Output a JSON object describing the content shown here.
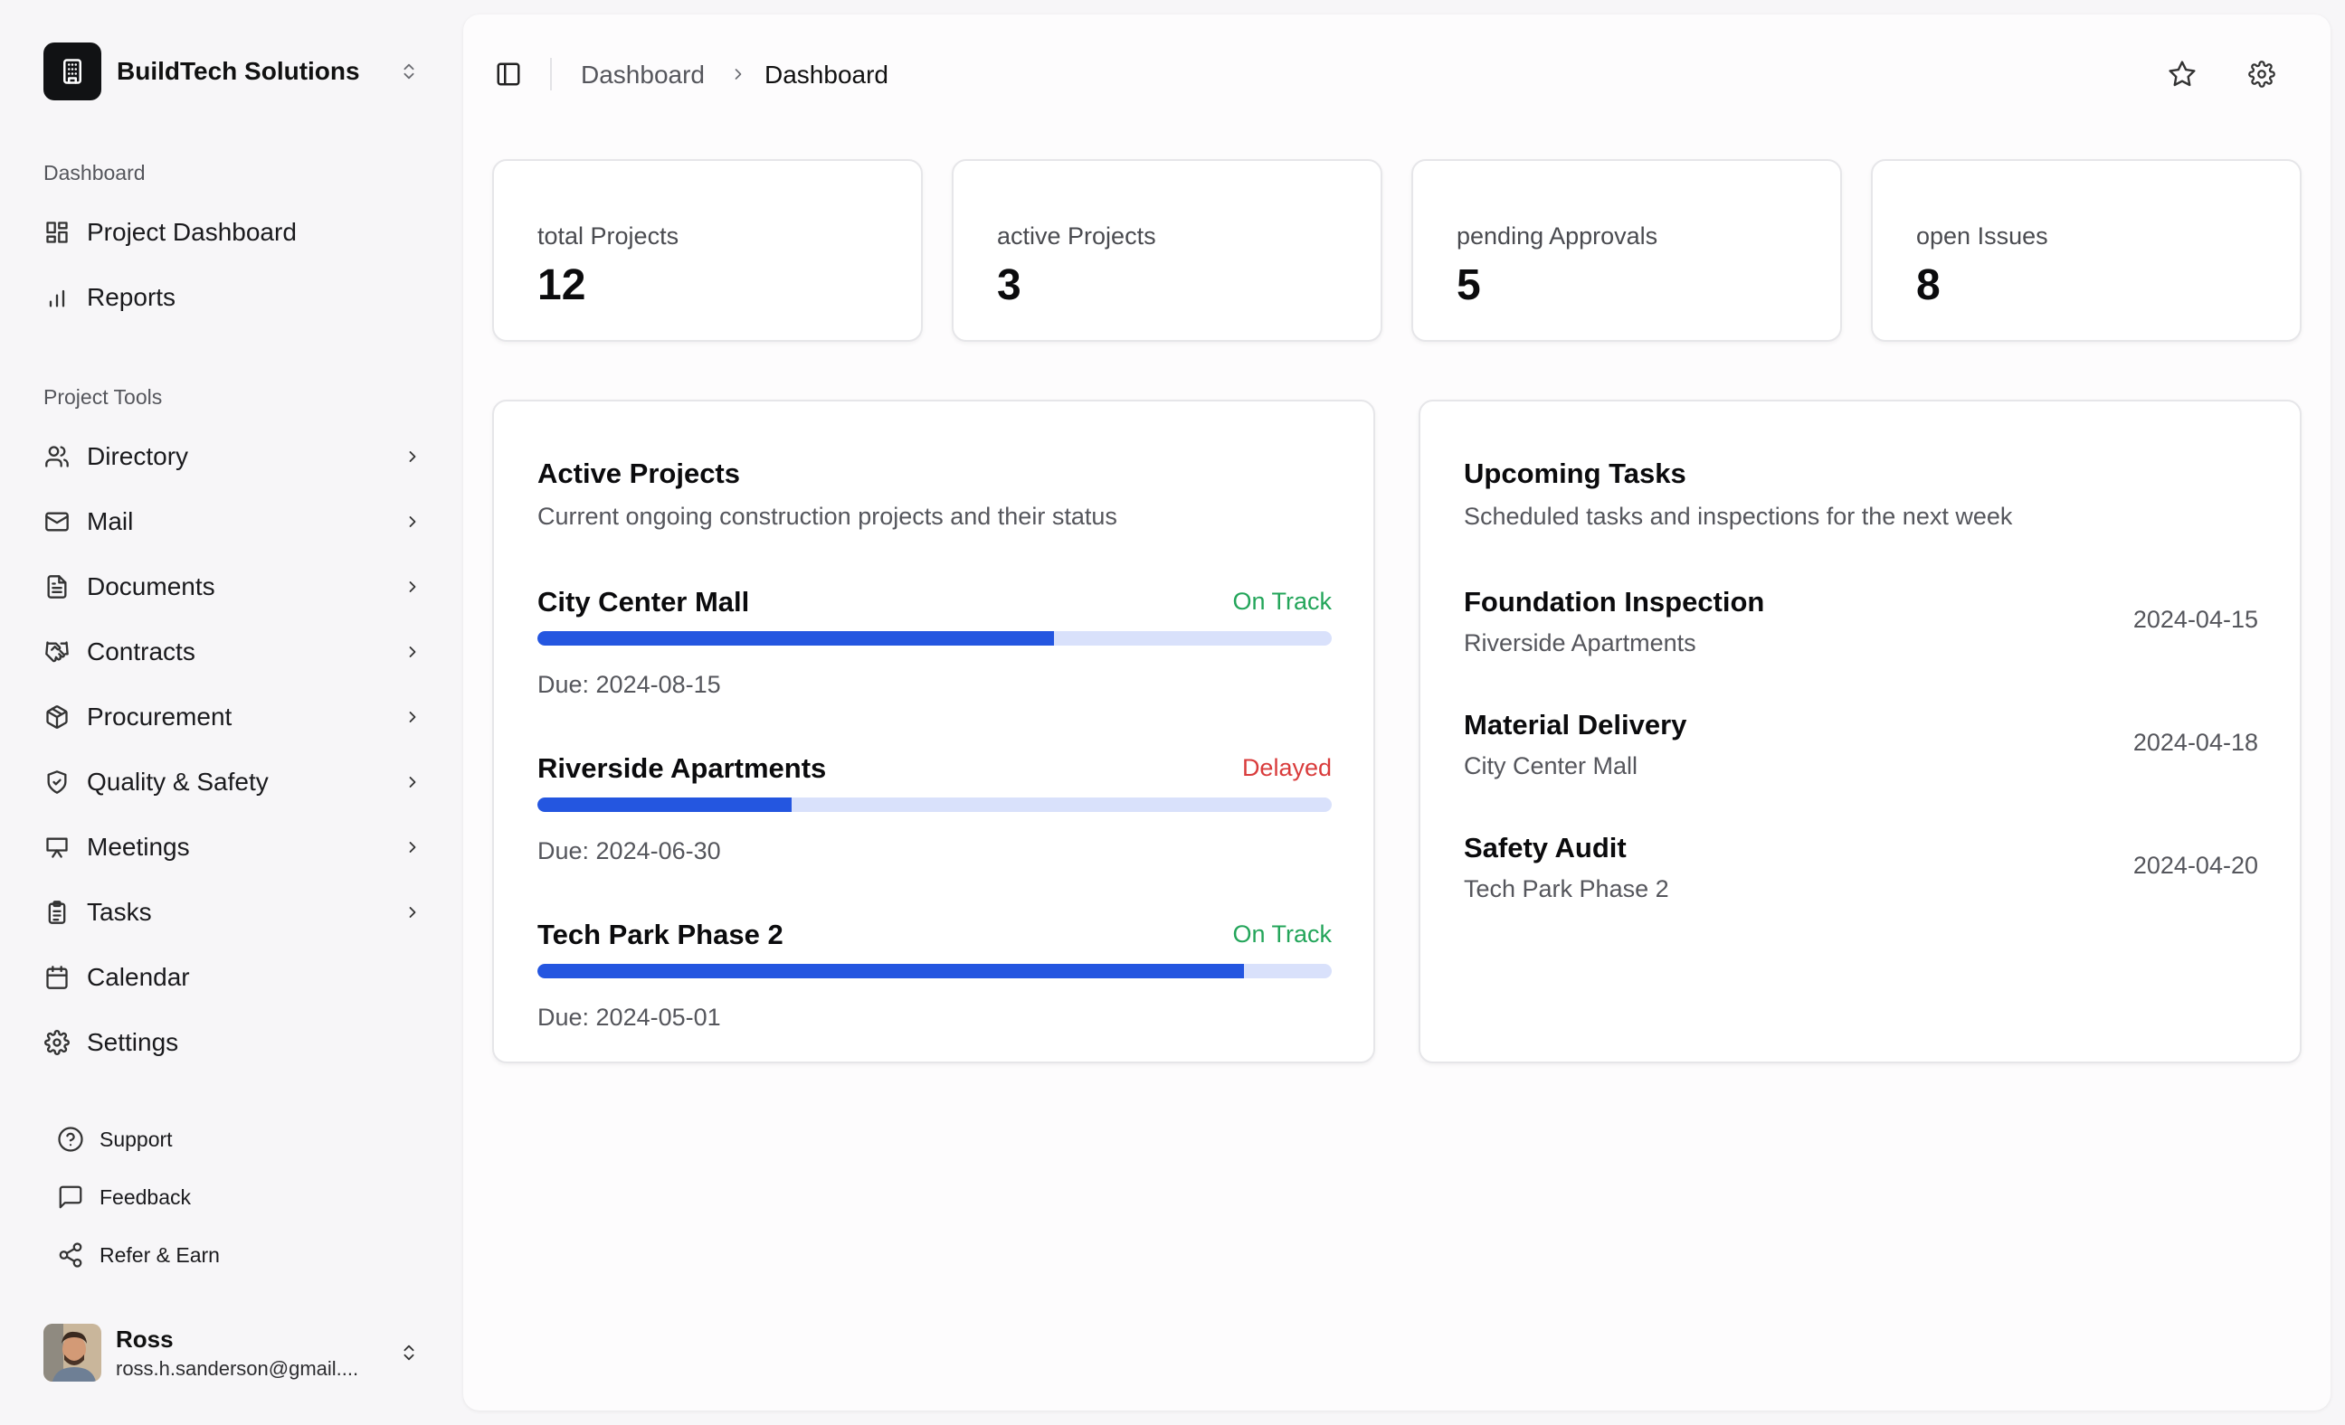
{
  "colors": {
    "accent": "#2456e0",
    "track": "#d9e1fb",
    "on_track": "#23a55a",
    "delayed": "#d93c3c"
  },
  "sidebar": {
    "org_name": "BuildTech Solutions",
    "groups": [
      {
        "label": "Dashboard",
        "items": [
          {
            "label": "Project Dashboard",
            "icon": "grid-icon"
          },
          {
            "label": "Reports",
            "icon": "bar-chart-icon"
          }
        ]
      },
      {
        "label": "Project Tools",
        "items": [
          {
            "label": "Directory",
            "icon": "users-icon"
          },
          {
            "label": "Mail",
            "icon": "mail-icon"
          },
          {
            "label": "Documents",
            "icon": "document-icon"
          },
          {
            "label": "Contracts",
            "icon": "handshake-icon"
          },
          {
            "label": "Procurement",
            "icon": "package-icon"
          },
          {
            "label": "Quality & Safety",
            "icon": "shield-check-icon"
          },
          {
            "label": "Meetings",
            "icon": "presentation-icon"
          },
          {
            "label": "Tasks",
            "icon": "clipboard-icon"
          },
          {
            "label": "Calendar",
            "icon": "calendar-icon"
          },
          {
            "label": "Settings",
            "icon": "gear-icon"
          }
        ]
      }
    ],
    "footer": [
      {
        "label": "Support",
        "icon": "help-circle-icon"
      },
      {
        "label": "Feedback",
        "icon": "message-icon"
      },
      {
        "label": "Refer & Earn",
        "icon": "share-icon"
      }
    ],
    "user": {
      "name": "Ross",
      "email": "ross.h.sanderson@gmail...."
    }
  },
  "header": {
    "breadcrumb": [
      "Dashboard",
      "Dashboard"
    ]
  },
  "stats": [
    {
      "label": "total Projects",
      "value": "12"
    },
    {
      "label": "active Projects",
      "value": "3"
    },
    {
      "label": "pending Approvals",
      "value": "5"
    },
    {
      "label": "open Issues",
      "value": "8"
    }
  ],
  "active_projects": {
    "title": "Active Projects",
    "subtitle": "Current ongoing construction projects and their status",
    "projects": [
      {
        "name": "City Center Mall",
        "status": "On Track",
        "progress": 0.65,
        "due": "Due: 2024-08-15"
      },
      {
        "name": "Riverside Apartments",
        "status": "Delayed",
        "progress": 0.32,
        "due": "Due: 2024-06-30"
      },
      {
        "name": "Tech Park Phase 2",
        "status": "On Track",
        "progress": 0.89,
        "due": "Due: 2024-05-01"
      }
    ]
  },
  "upcoming_tasks": {
    "title": "Upcoming Tasks",
    "subtitle": "Scheduled tasks and inspections for the next week",
    "tasks": [
      {
        "name": "Foundation Inspection",
        "project": "Riverside Apartments",
        "date": "2024-04-15"
      },
      {
        "name": "Material Delivery",
        "project": "City Center Mall",
        "date": "2024-04-18"
      },
      {
        "name": "Safety Audit",
        "project": "Tech Park Phase 2",
        "date": "2024-04-20"
      }
    ]
  }
}
